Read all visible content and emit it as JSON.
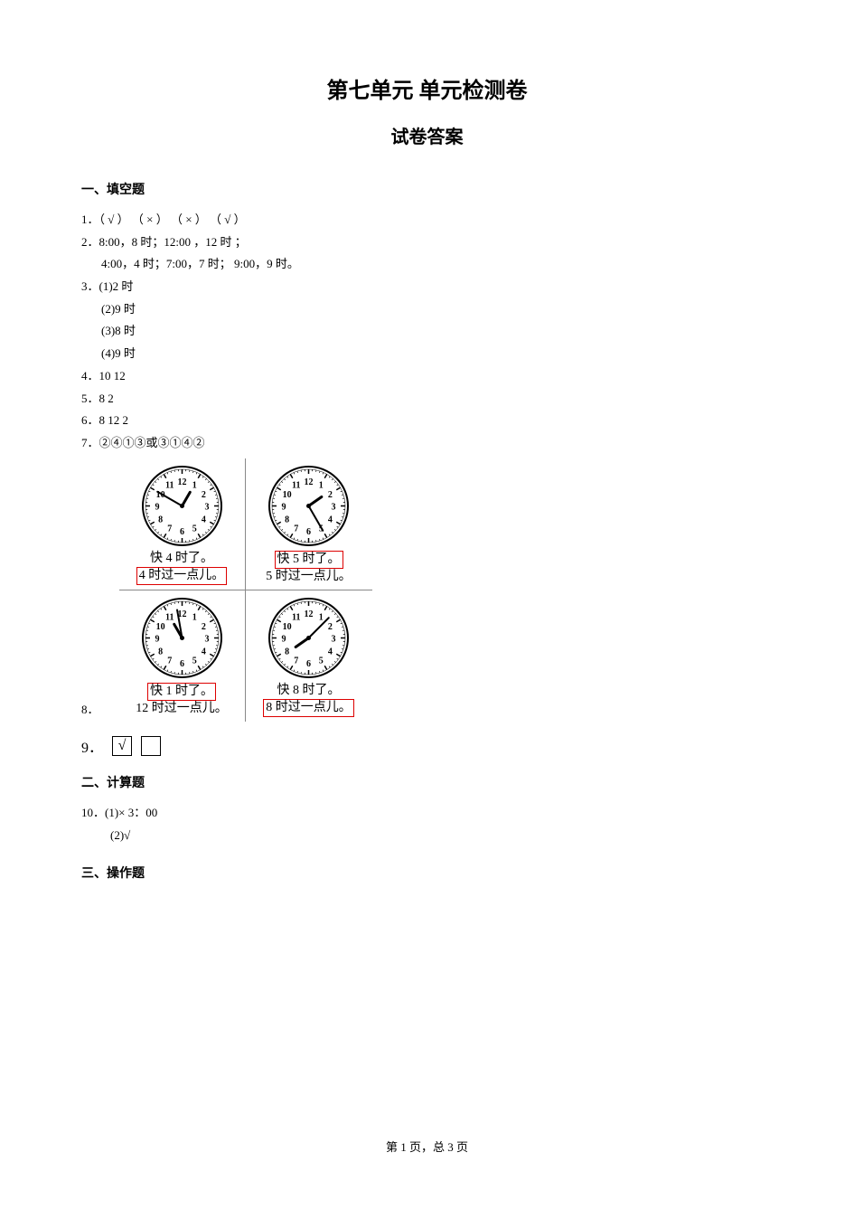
{
  "title": "第七单元  单元检测卷",
  "subtitle": "试卷答案",
  "section1": {
    "header": "一、填空题",
    "q1": "1．（ √ ）  （ × ）  （ × ）  （ √ ）",
    "q2a": "2．8:00，8 时；12:00 ，12 时 ；",
    "q2b": "4:00，4 时；7:00，7 时； 9:00，9 时。",
    "q3a": "3．(1)2 时",
    "q3b": "(2)9 时",
    "q3c": "(3)8 时",
    "q3d": "(4)9 时",
    "q4": "4．10      12",
    "q5": "5．8      2",
    "q6": "6．8      12      2",
    "q7": "7．②④①③或③①④②",
    "q8_label": "8．",
    "q9_label": "9．",
    "q9_check": "√"
  },
  "clocks": [
    {
      "hour_angle": 30,
      "minute_angle": 300,
      "unboxed": "快 4 时了。",
      "boxed": "4 时过一点儿。",
      "box_first": false
    },
    {
      "hour_angle": 55,
      "minute_angle": 150,
      "unboxed": "5 时过一点儿。",
      "boxed": "快 5 时了。",
      "box_first": true
    },
    {
      "hour_angle": -30,
      "minute_angle": -10,
      "unboxed": "12 时过一点儿。",
      "boxed": "快 1 时了。",
      "box_first": true
    },
    {
      "hour_angle": -125,
      "minute_angle": 45,
      "unboxed": "快 8 时了。",
      "boxed": "8 时过一点儿。",
      "box_first": false
    }
  ],
  "clock_style": {
    "size": 95,
    "stroke": "#000",
    "bg": "#ffffff",
    "tick_color": "#000"
  },
  "section2": {
    "header": "二、计算题",
    "q10a": "10．(1)×      3：00",
    "q10b": "(2)√"
  },
  "section3": {
    "header": "三、操作题"
  },
  "footer": "第 1 页，总 3 页"
}
